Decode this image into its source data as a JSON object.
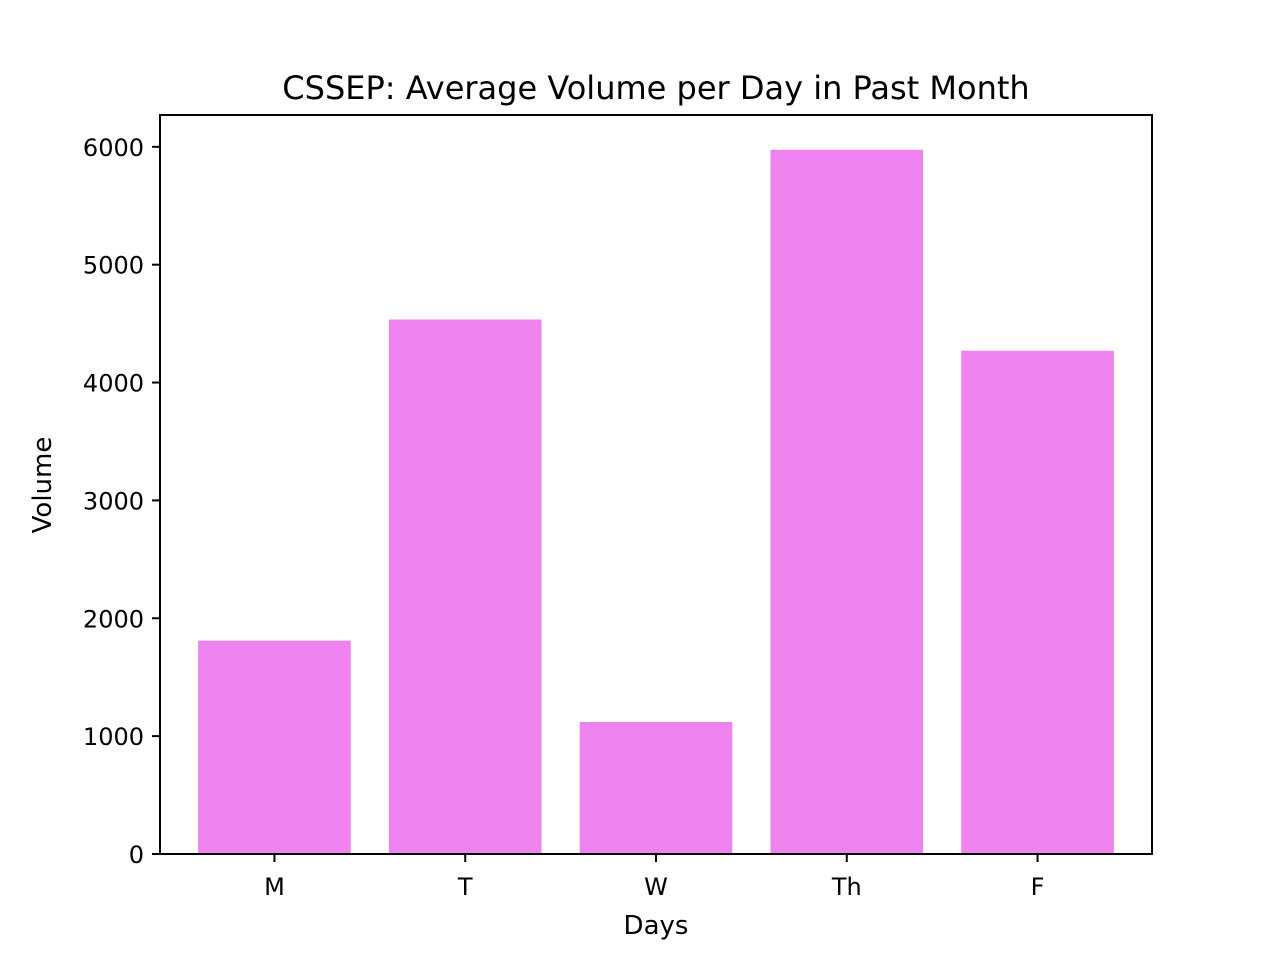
{
  "chart_data": {
    "type": "bar",
    "title": "CSSEP: Average Volume per Day in Past Month",
    "xlabel": "Days",
    "ylabel": "Volume",
    "categories": [
      "M",
      "T",
      "W",
      "Th",
      "F"
    ],
    "values": [
      1810,
      4535,
      1120,
      5975,
      4270
    ],
    "ylim": [
      0,
      6270
    ],
    "yticks": [
      0,
      1000,
      2000,
      3000,
      4000,
      5000,
      6000
    ],
    "bar_color": "#EE82EE",
    "grid": false,
    "legend": "none"
  }
}
